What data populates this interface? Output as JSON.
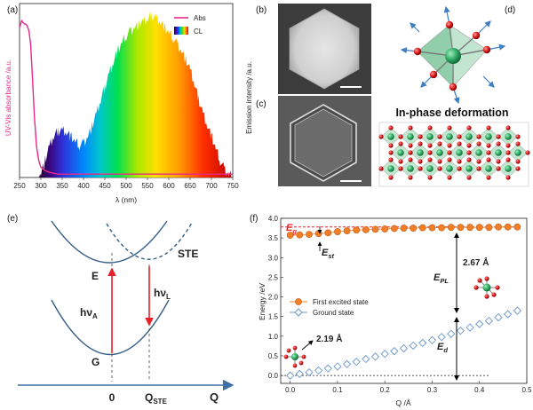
{
  "panel_labels": {
    "a": "(a)",
    "b": "(b)",
    "c": "(c)",
    "d": "(d)",
    "e": "(e)",
    "f": "(f)"
  },
  "panel_a": {
    "ylabel": "UV-Vis absorbance /a.u.",
    "right_ylabel": "Emission intensity /a.u.",
    "xlabel": "λ (nm)",
    "legend_abs": "Abs",
    "legend_cl": "CL",
    "abs_color": "#e8288a"
  },
  "panel_d": {
    "caption": "In-phase deformation"
  },
  "panel_e": {
    "ste": "STE",
    "e": "E",
    "g": "G",
    "hva": "hν",
    "hva_sub": "A",
    "hvl": "hν",
    "hvl_sub": "L",
    "x0": "0",
    "qste": "Q",
    "qste_sub": "STE",
    "q": "Q"
  },
  "panel_f": {
    "ylabel": "Energy /eV",
    "xlabel": "Q /Å",
    "eg": "E",
    "eg_sub": "g",
    "est": "E",
    "est_sub": "st",
    "epl": "E",
    "epl_sub": "PL",
    "ed": "E",
    "ed_sub": "d",
    "ann_267": "2.67 Å",
    "ann_219": "2.19 Å",
    "excited_color": "#f07f2a",
    "ground_color": "#6a95c8"
  },
  "chart_data": [
    {
      "type": "area",
      "panel": "(a)",
      "xlabel": "λ (nm)",
      "ylabel": "UV-Vis absorbance /a.u.",
      "xlim": [
        250,
        750
      ],
      "x_ticks": [
        250,
        300,
        350,
        400,
        450,
        500,
        550,
        600,
        650,
        700,
        750
      ],
      "series": [
        {
          "name": "Abs",
          "type": "line",
          "x": [
            250,
            255,
            258,
            262,
            265,
            268,
            272,
            276,
            280,
            285,
            290,
            295,
            300,
            310,
            320,
            340,
            360,
            400,
            500,
            600,
            750
          ],
          "y": [
            0.88,
            0.92,
            0.91,
            0.9,
            0.9,
            0.89,
            0.86,
            0.78,
            0.6,
            0.35,
            0.18,
            0.1,
            0.06,
            0.04,
            0.03,
            0.02,
            0.02,
            0.02,
            0.02,
            0.02,
            0.02
          ]
        },
        {
          "name": "CL",
          "type": "area",
          "x": [
            250,
            290,
            300,
            310,
            320,
            330,
            340,
            350,
            360,
            370,
            380,
            390,
            400,
            410,
            420,
            430,
            440,
            450,
            460,
            470,
            480,
            490,
            500,
            510,
            520,
            530,
            540,
            550,
            560,
            570,
            580,
            590,
            600,
            610,
            620,
            630,
            640,
            650,
            660,
            670,
            680,
            690,
            700,
            710,
            720,
            730,
            740,
            750
          ],
          "y": [
            0,
            0,
            0.02,
            0.1,
            0.18,
            0.24,
            0.27,
            0.28,
            0.27,
            0.24,
            0.21,
            0.19,
            0.2,
            0.24,
            0.3,
            0.37,
            0.45,
            0.53,
            0.61,
            0.68,
            0.74,
            0.79,
            0.83,
            0.86,
            0.88,
            0.9,
            0.91,
            0.93,
            0.95,
            0.94,
            0.92,
            0.88,
            0.85,
            0.82,
            0.78,
            0.74,
            0.69,
            0.63,
            0.55,
            0.46,
            0.38,
            0.31,
            0.24,
            0.17,
            0.1,
            0.05,
            0.02,
            0.01
          ]
        }
      ]
    },
    {
      "type": "scatter",
      "panel": "(f)",
      "xlabel": "Q /Å",
      "ylabel": "Energy /eV",
      "xlim": [
        -0.02,
        0.5
      ],
      "ylim": [
        -0.2,
        4.0
      ],
      "x_ticks": [
        "0.0",
        "0.1",
        "0.2",
        "0.3",
        "0.4",
        "0.5"
      ],
      "y_ticks": [
        "0.0",
        "0.5",
        "1.0",
        "1.5",
        "2.0",
        "2.5",
        "3.0",
        "3.5",
        "4.0"
      ],
      "legend": "middle-left",
      "series": [
        {
          "name": "First excited state",
          "x": [
            0.0,
            0.02,
            0.04,
            0.06,
            0.08,
            0.1,
            0.12,
            0.14,
            0.16,
            0.18,
            0.2,
            0.22,
            0.24,
            0.26,
            0.28,
            0.3,
            0.32,
            0.34,
            0.36,
            0.38,
            0.4,
            0.42,
            0.44,
            0.46,
            0.48
          ],
          "y": [
            3.57,
            3.58,
            3.59,
            3.61,
            3.63,
            3.66,
            3.68,
            3.7,
            3.71,
            3.72,
            3.73,
            3.74,
            3.75,
            3.75,
            3.76,
            3.76,
            3.76,
            3.77,
            3.77,
            3.77,
            3.77,
            3.77,
            3.78,
            3.78,
            3.78
          ]
        },
        {
          "name": "Ground state",
          "x": [
            0.0,
            0.02,
            0.04,
            0.06,
            0.08,
            0.1,
            0.12,
            0.14,
            0.16,
            0.18,
            0.2,
            0.22,
            0.24,
            0.26,
            0.28,
            0.3,
            0.32,
            0.34,
            0.36,
            0.38,
            0.4,
            0.42,
            0.44,
            0.46,
            0.48
          ],
          "y": [
            0.0,
            0.04,
            0.08,
            0.13,
            0.18,
            0.23,
            0.29,
            0.35,
            0.42,
            0.48,
            0.55,
            0.62,
            0.69,
            0.76,
            0.83,
            0.9,
            0.98,
            1.06,
            1.14,
            1.22,
            1.31,
            1.39,
            1.48,
            1.56,
            1.65
          ]
        }
      ]
    }
  ]
}
